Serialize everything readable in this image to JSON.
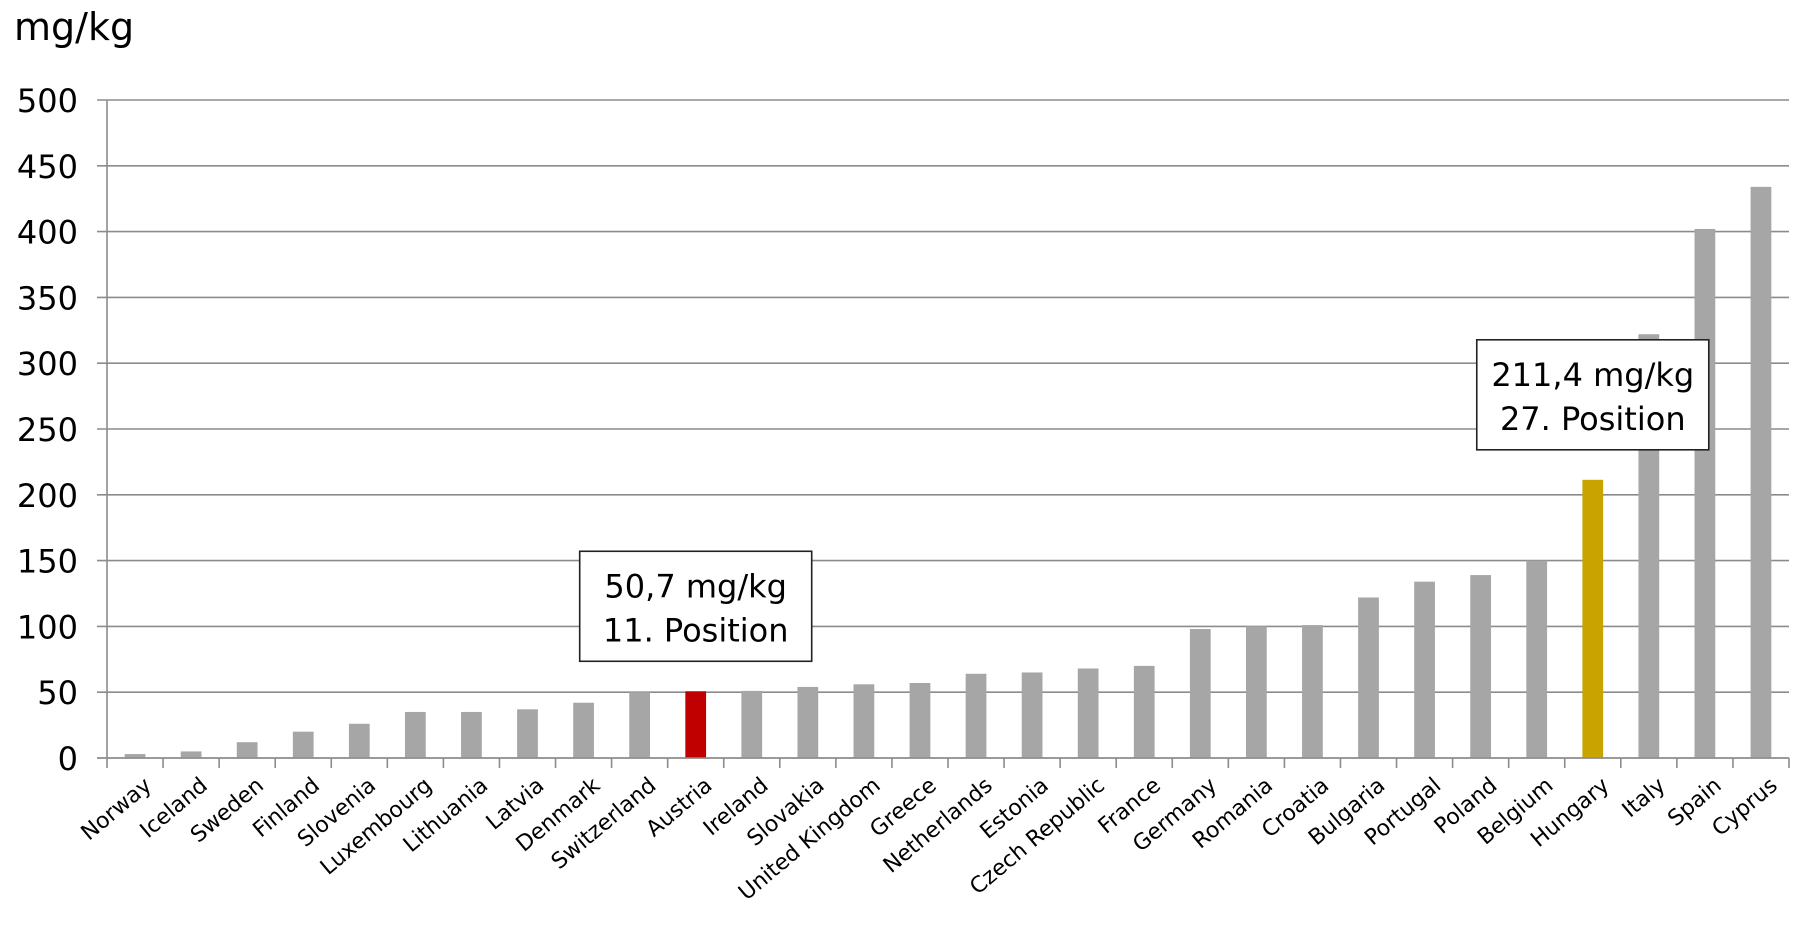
{
  "chart_data": {
    "type": "bar",
    "ylabel": "mg/kg",
    "ylim": [
      0,
      500
    ],
    "yticks": [
      0,
      50,
      100,
      150,
      200,
      250,
      300,
      350,
      400,
      450,
      500
    ],
    "grid": true,
    "categories": [
      "Norway",
      "Iceland",
      "Sweden",
      "Finland",
      "Slovenia",
      "Luxembourg",
      "Lithuania",
      "Latvia",
      "Denmark",
      "Switzerland",
      "Austria",
      "Ireland",
      "Slovakia",
      "United Kingdom",
      "Greece",
      "Netherlands",
      "Estonia",
      "Czech Republic",
      "France",
      "Germany",
      "Romania",
      "Croatia",
      "Bulgaria",
      "Portugal",
      "Poland",
      "Belgium",
      "Hungary",
      "Italy",
      "Spain",
      "Cyprus"
    ],
    "values": [
      3,
      5,
      12,
      20,
      26,
      35,
      35,
      37,
      42,
      50,
      50.7,
      51,
      54,
      56,
      57,
      64,
      65,
      68,
      70,
      98,
      100,
      101,
      122,
      134,
      139,
      150,
      211.4,
      322,
      402,
      434
    ],
    "colors": {
      "default": "#a6a6a6",
      "Austria": "#c00000",
      "Hungary": "#c9a300"
    },
    "annotations": [
      {
        "category": "Austria",
        "line1": "50,7 mg/kg",
        "line2": "11. Position"
      },
      {
        "category": "Hungary",
        "line1": "211,4 mg/kg",
        "line2": "27. Position"
      }
    ]
  }
}
